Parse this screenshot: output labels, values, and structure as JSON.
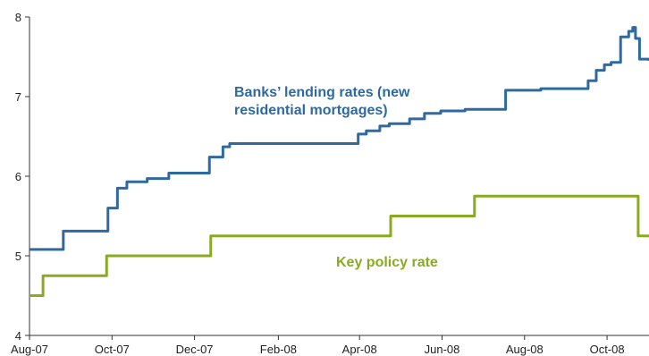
{
  "chart_data": {
    "type": "line",
    "title": "",
    "xlabel": "",
    "ylabel": "",
    "x_range": [
      "2007-08-01",
      "2008-11-01"
    ],
    "ylim": [
      4,
      8
    ],
    "y_ticks": [
      4,
      5,
      6,
      7,
      8
    ],
    "x_ticks": [
      {
        "date": "2007-08-01",
        "label": "Aug-07"
      },
      {
        "date": "2007-10-01",
        "label": "Oct-07"
      },
      {
        "date": "2007-12-01",
        "label": "Dec-07"
      },
      {
        "date": "2008-02-01",
        "label": "Feb-08"
      },
      {
        "date": "2008-04-01",
        "label": "Apr-08"
      },
      {
        "date": "2008-06-01",
        "label": "Jun-08"
      },
      {
        "date": "2008-08-01",
        "label": "Aug-08"
      },
      {
        "date": "2008-10-01",
        "label": "Oct-08"
      }
    ],
    "grid": false,
    "annotations": [
      {
        "text_lines": [
          "Banks’ lending rates (new",
          "residential mortgages)"
        ],
        "series": "lending"
      },
      {
        "text_lines": [
          "Key policy rate"
        ],
        "series": "policy"
      }
    ],
    "series": [
      {
        "id": "lending",
        "name": "Banks’ lending rates (new residential mortgages)",
        "color": "#2e6aa0",
        "step": true,
        "points": [
          [
            "2007-08-01",
            5.08
          ],
          [
            "2007-08-26",
            5.31
          ],
          [
            "2007-09-28",
            5.6
          ],
          [
            "2007-10-05",
            5.85
          ],
          [
            "2007-10-12",
            5.93
          ],
          [
            "2007-10-27",
            5.97
          ],
          [
            "2007-11-12",
            6.04
          ],
          [
            "2007-12-12",
            6.24
          ],
          [
            "2007-12-22",
            6.37
          ],
          [
            "2007-12-27",
            6.41
          ],
          [
            "2008-03-31",
            6.53
          ],
          [
            "2008-04-06",
            6.57
          ],
          [
            "2008-04-16",
            6.63
          ],
          [
            "2008-04-23",
            6.66
          ],
          [
            "2008-05-08",
            6.72
          ],
          [
            "2008-05-19",
            6.79
          ],
          [
            "2008-05-31",
            6.82
          ],
          [
            "2008-06-18",
            6.84
          ],
          [
            "2008-07-18",
            7.08
          ],
          [
            "2008-08-13",
            7.1
          ],
          [
            "2008-09-17",
            7.2
          ],
          [
            "2008-09-23",
            7.33
          ],
          [
            "2008-09-29",
            7.4
          ],
          [
            "2008-10-04",
            7.43
          ],
          [
            "2008-10-11",
            7.75
          ],
          [
            "2008-10-17",
            7.82
          ],
          [
            "2008-10-20",
            7.87
          ],
          [
            "2008-10-22",
            7.73
          ],
          [
            "2008-10-25",
            7.47
          ],
          [
            "2008-11-01",
            7.45
          ]
        ]
      },
      {
        "id": "policy",
        "name": "Key policy rate",
        "color": "#8aaa24",
        "step": true,
        "points": [
          [
            "2007-08-01",
            4.5
          ],
          [
            "2007-08-11",
            4.75
          ],
          [
            "2007-09-27",
            5.0
          ],
          [
            "2007-12-13",
            5.25
          ],
          [
            "2008-04-24",
            5.5
          ],
          [
            "2008-06-25",
            5.75
          ],
          [
            "2008-10-24",
            5.25
          ],
          [
            "2008-11-01",
            5.25
          ]
        ]
      }
    ]
  }
}
